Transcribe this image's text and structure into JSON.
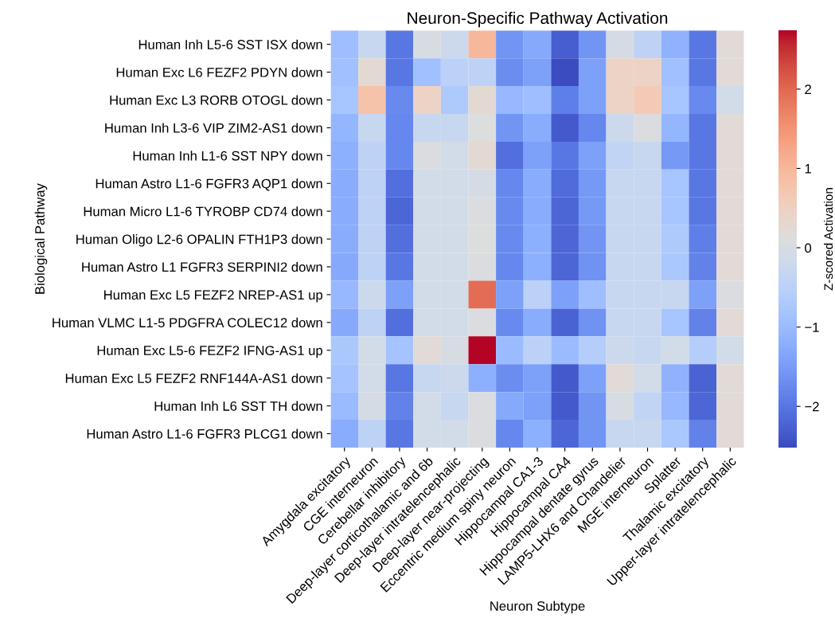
{
  "chart_data": {
    "type": "heatmap",
    "title": "Neuron-Specific Pathway Activation",
    "xlabel": "Neuron Subtype",
    "ylabel": "Biological Pathway",
    "clabel": "Z-scored Activation",
    "categories": [
      "Amygdala excitatory",
      "CGE interneuron",
      "Cerebellar inhibitory",
      "Deep-layer corticothalamic and 6b",
      "Deep-layer intratelencephalic",
      "Deep-layer near-projecting",
      "Eccentric medium spiny neuron",
      "Hippocampal CA1-3",
      "Hippocampal CA4",
      "Hippocampal dentate gyrus",
      "LAMP5-LHX6 and Chandelier",
      "MGE interneuron",
      "Splatter",
      "Thalamic excitatory",
      "Upper-layer intratelencephalic"
    ],
    "y_categories": [
      "Human Inh L5-6 SST ISX down",
      "Human Exc L6 FEZF2 PDYN down",
      "Human Exc L3 RORB OTOGL down",
      "Human Inh L3-6 VIP ZIM2-AS1 down",
      "Human Inh L1-6 SST NPY down",
      "Human Astro L1-6 FGFR3 AQP1 down",
      "Human Micro L1-6 TYROBP CD74 down",
      "Human Oligo L2-6 OPALIN FTH1P3 down",
      "Human Astro L1 FGFR3 SERPINI2 down",
      "Human Exc L5 FEZF2 NREP-AS1 up",
      "Human VLMC L1-5 PDGFRA COLEC12 down",
      "Human Exc L5-6 FEZF2 IFNG-AS1 up",
      "Human Exc L5 FEZF2 RNF144A-AS1 down",
      "Human Inh L6 SST TH down",
      "Human Astro L1-6 FGFR3 PLCG1 down"
    ],
    "cells": [
      [
        -0.95,
        -0.3,
        -2.0,
        0.0,
        -0.2,
        1.0,
        -1.6,
        -1.3,
        -2.3,
        -1.6,
        -0.05,
        -0.45,
        -1.15,
        -2.0,
        0.2
      ],
      [
        -0.9,
        0.25,
        -2.0,
        -0.9,
        -0.5,
        -0.45,
        -1.7,
        -1.45,
        -2.5,
        -1.45,
        0.45,
        0.45,
        -0.9,
        -2.0,
        0.2
      ],
      [
        -0.8,
        0.8,
        -1.75,
        0.45,
        -0.7,
        0.25,
        -1.05,
        -0.95,
        -1.9,
        -1.45,
        0.45,
        0.65,
        -0.8,
        -1.75,
        -0.1
      ],
      [
        -1.1,
        -0.3,
        -1.8,
        -0.3,
        -0.3,
        0.1,
        -1.6,
        -1.25,
        -2.35,
        -1.8,
        -0.2,
        0.05,
        -1.1,
        -2.0,
        0.2
      ],
      [
        -1.2,
        -0.45,
        -1.8,
        0.05,
        -0.1,
        0.25,
        -2.1,
        -1.45,
        -2.0,
        -1.45,
        -0.4,
        -0.3,
        -1.55,
        -2.0,
        0.2
      ],
      [
        -1.25,
        -0.45,
        -2.1,
        -0.1,
        -0.1,
        -0.05,
        -1.8,
        -1.25,
        -2.15,
        -1.55,
        -0.3,
        -0.3,
        -0.8,
        -2.0,
        0.2
      ],
      [
        -1.25,
        -0.45,
        -2.2,
        -0.1,
        -0.1,
        0.05,
        -1.75,
        -1.25,
        -2.2,
        -1.55,
        -0.3,
        -0.3,
        -0.8,
        -2.0,
        0.2
      ],
      [
        -1.25,
        -0.45,
        -2.1,
        -0.1,
        -0.1,
        0.1,
        -1.75,
        -1.2,
        -2.2,
        -1.6,
        -0.3,
        -0.3,
        -0.7,
        -1.9,
        0.2
      ],
      [
        -1.3,
        -0.45,
        -2.0,
        -0.1,
        -0.1,
        0.05,
        -1.8,
        -1.2,
        -2.2,
        -1.65,
        -0.3,
        -0.3,
        -0.75,
        -1.85,
        0.2
      ],
      [
        -1.05,
        -0.2,
        -1.45,
        -0.1,
        -0.1,
        1.95,
        -1.45,
        -0.5,
        -1.45,
        -0.95,
        -0.3,
        -0.3,
        -0.3,
        -1.45,
        0.05
      ],
      [
        -1.3,
        -0.45,
        -2.1,
        -0.1,
        -0.1,
        0.05,
        -1.75,
        -1.25,
        -2.25,
        -1.65,
        -0.3,
        -0.3,
        -0.8,
        -1.85,
        0.2
      ],
      [
        -0.75,
        -0.1,
        -0.85,
        0.2,
        0.0,
        2.74,
        -1.0,
        -0.5,
        -1.0,
        -0.6,
        -0.2,
        -0.3,
        -0.1,
        -0.6,
        -0.1
      ],
      [
        -0.85,
        -0.1,
        -2.0,
        -0.3,
        -0.2,
        -1.2,
        -1.7,
        -1.45,
        -2.35,
        -1.45,
        0.2,
        -0.1,
        -1.15,
        -2.25,
        0.2
      ],
      [
        -1.0,
        -0.05,
        -1.85,
        -0.1,
        -0.3,
        0.05,
        -1.3,
        -1.45,
        -2.35,
        -1.6,
        0.0,
        -0.4,
        -1.05,
        -2.2,
        0.2
      ],
      [
        -1.25,
        -0.45,
        -2.0,
        -0.1,
        -0.1,
        0.05,
        -1.8,
        -1.2,
        -2.2,
        -1.6,
        -0.3,
        -0.3,
        -0.75,
        -1.85,
        0.2
      ]
    ],
    "clim": [
      -2.52,
      2.74
    ],
    "cticks": [
      -2,
      -1,
      0,
      1,
      2
    ]
  }
}
